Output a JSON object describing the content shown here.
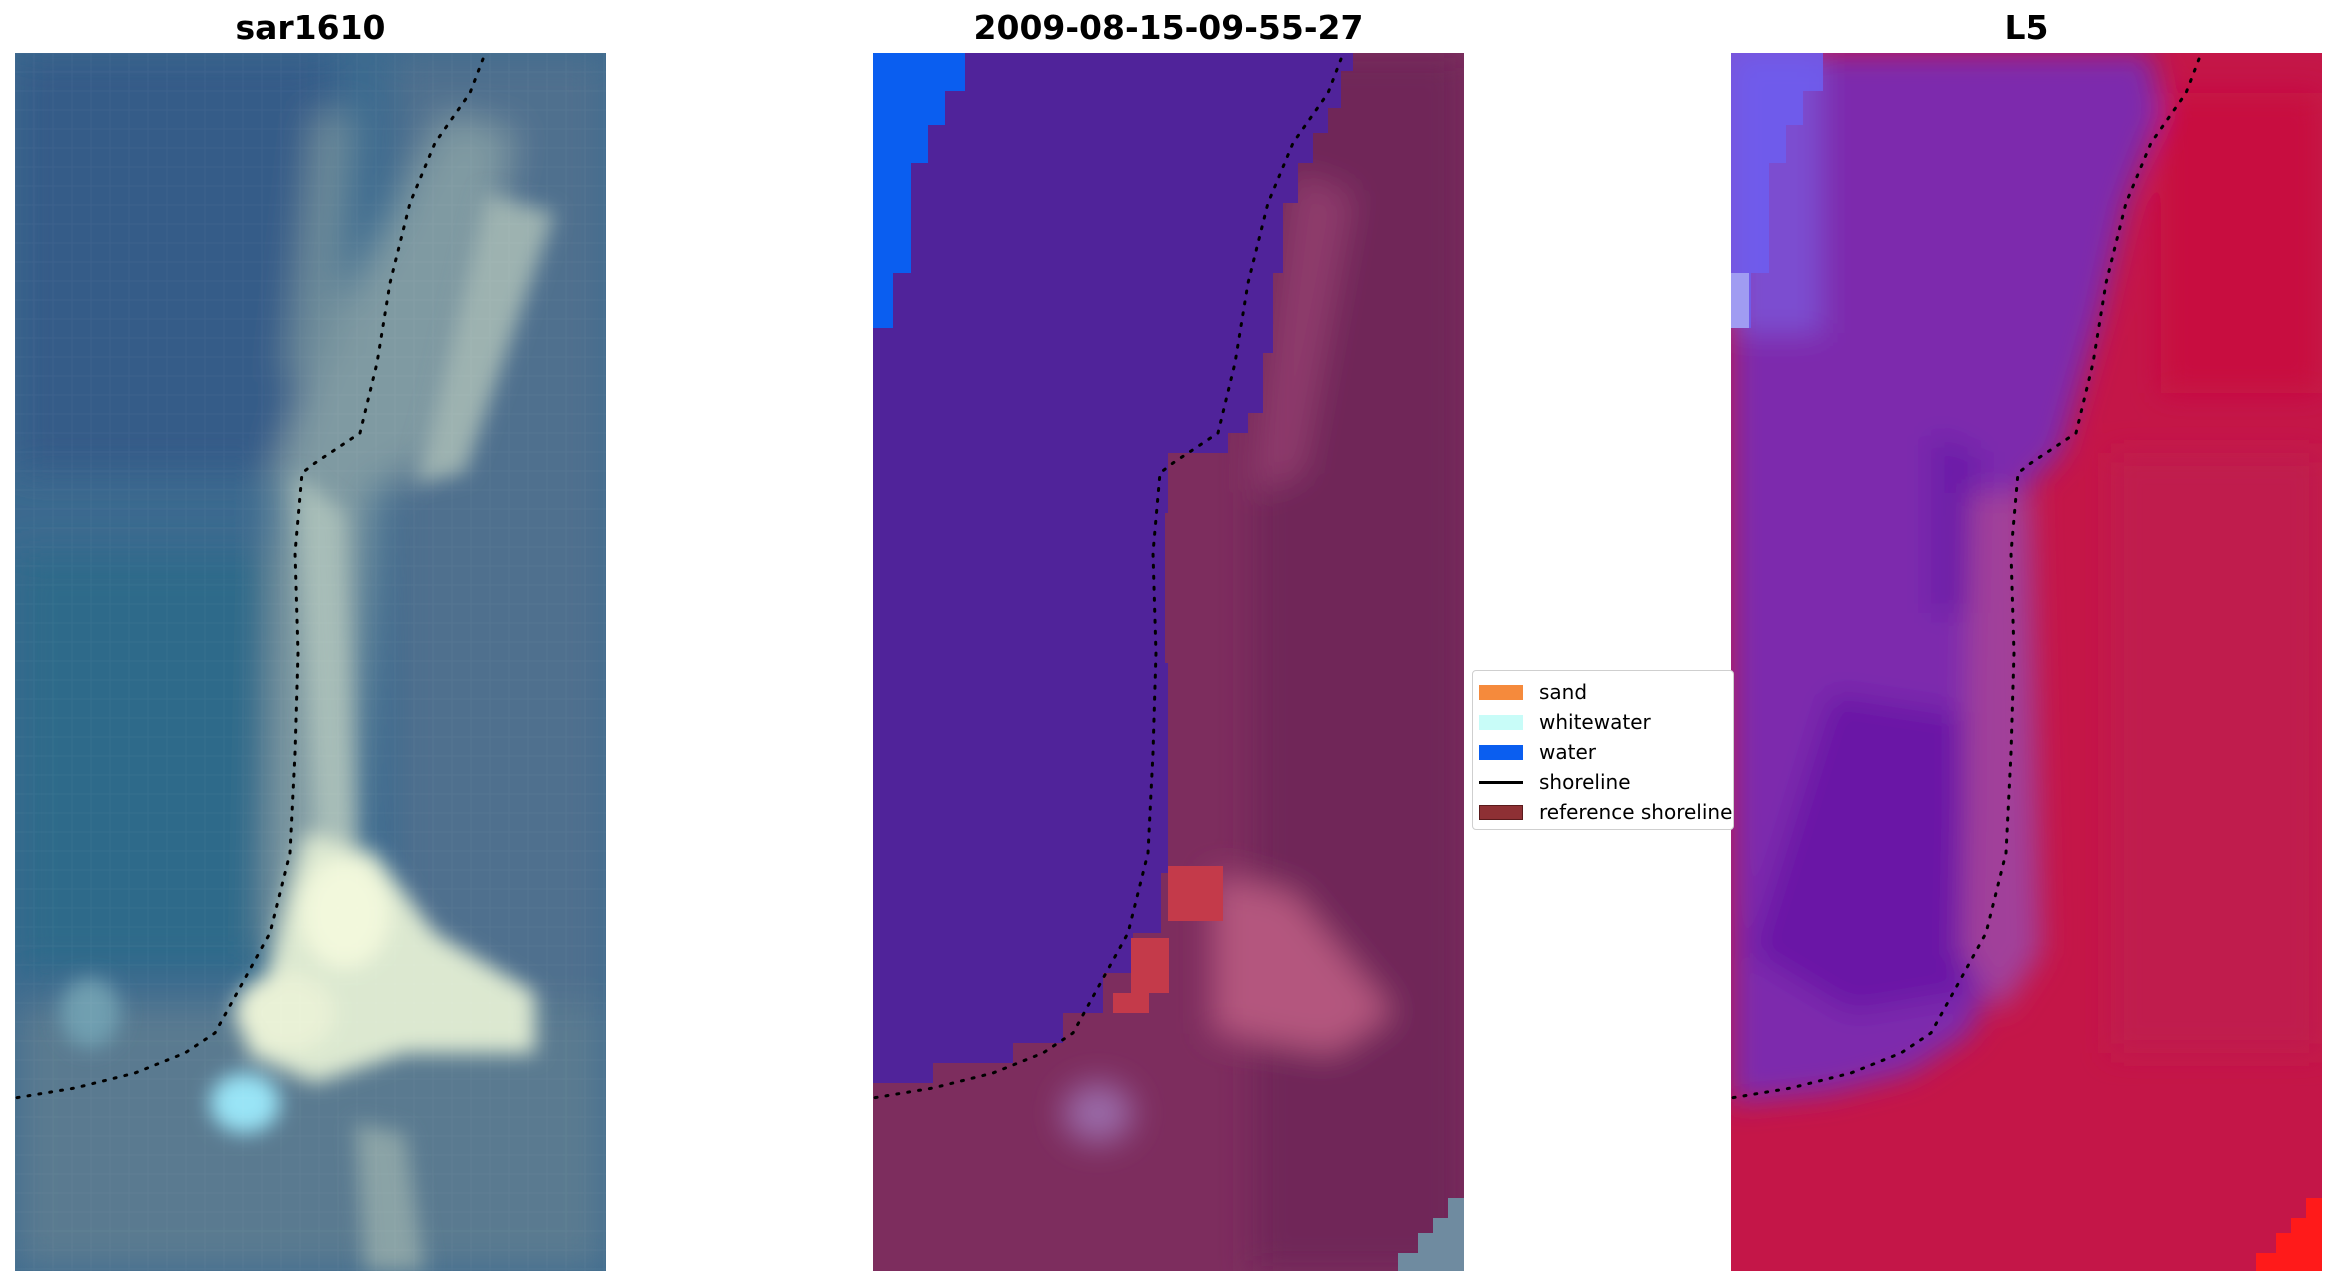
{
  "panels": [
    {
      "title": "sar1610",
      "image": "RGB satellite image of a sandbar and shoreline"
    },
    {
      "title": "2009-08-15-09-55-27",
      "image": "classified image overlay"
    },
    {
      "title": "L5",
      "image": "water index image"
    }
  ],
  "legend": {
    "items": [
      {
        "label": "sand",
        "color": "#f58a3c",
        "kind": "patch"
      },
      {
        "label": "whitewater",
        "color": "#c8fcf8",
        "kind": "patch"
      },
      {
        "label": "water",
        "color": "#0a5ef0",
        "kind": "patch"
      },
      {
        "label": "shoreline",
        "color": "#000000",
        "kind": "line"
      },
      {
        "label": "reference shoreline",
        "color": "#8e3034",
        "kind": "patch"
      }
    ]
  },
  "colors": {
    "classified_water": "#50239a",
    "classified_land": "#7d2d5e",
    "index_water": "#7b2fb0",
    "index_land": "#c41648",
    "rgb_water": "#3e6b93",
    "rgb_sand": "#d9e6d2"
  }
}
